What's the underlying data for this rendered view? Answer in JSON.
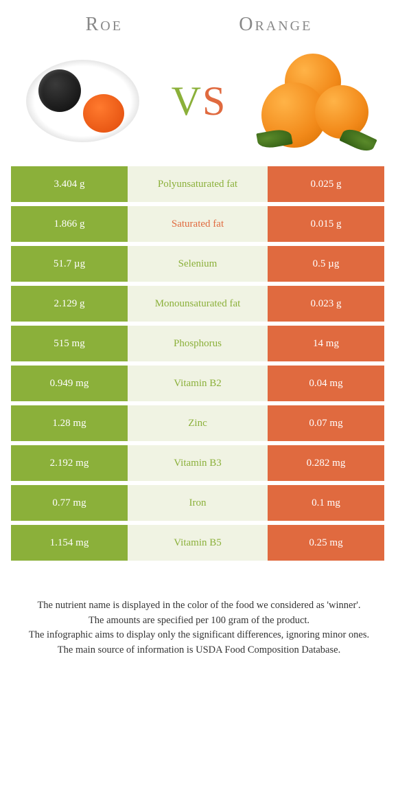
{
  "colors": {
    "left": "#8bb03a",
    "right": "#e06a3f",
    "mid_bg": "#f0f3e3",
    "mid_text_left": "#8bb03a",
    "mid_text_right": "#e06a3f",
    "header_text": "#888888"
  },
  "header": {
    "left_title": "Roe",
    "right_title": "Orange",
    "vs_v": "V",
    "vs_s": "S"
  },
  "rows": [
    {
      "left": "3.404 g",
      "label": "Polyunsaturated fat",
      "right": "0.025 g",
      "winner": "left"
    },
    {
      "left": "1.866 g",
      "label": "Saturated fat",
      "right": "0.015 g",
      "winner": "right"
    },
    {
      "left": "51.7 µg",
      "label": "Selenium",
      "right": "0.5 µg",
      "winner": "left"
    },
    {
      "left": "2.129 g",
      "label": "Monounsaturated fat",
      "right": "0.023 g",
      "winner": "left"
    },
    {
      "left": "515 mg",
      "label": "Phosphorus",
      "right": "14 mg",
      "winner": "left"
    },
    {
      "left": "0.949 mg",
      "label": "Vitamin B2",
      "right": "0.04 mg",
      "winner": "left"
    },
    {
      "left": "1.28 mg",
      "label": "Zinc",
      "right": "0.07 mg",
      "winner": "left"
    },
    {
      "left": "2.192 mg",
      "label": "Vitamin B3",
      "right": "0.282 mg",
      "winner": "left"
    },
    {
      "left": "0.77 mg",
      "label": "Iron",
      "right": "0.1 mg",
      "winner": "left"
    },
    {
      "left": "1.154 mg",
      "label": "Vitamin B5",
      "right": "0.25 mg",
      "winner": "left"
    }
  ],
  "footnotes": [
    "The nutrient name is displayed in the color of the food we considered as 'winner'.",
    "The amounts are specified per 100 gram of the product.",
    "The infographic aims to display only the significant differences, ignoring minor ones.",
    "The main source of information is USDA Food Composition Database."
  ]
}
